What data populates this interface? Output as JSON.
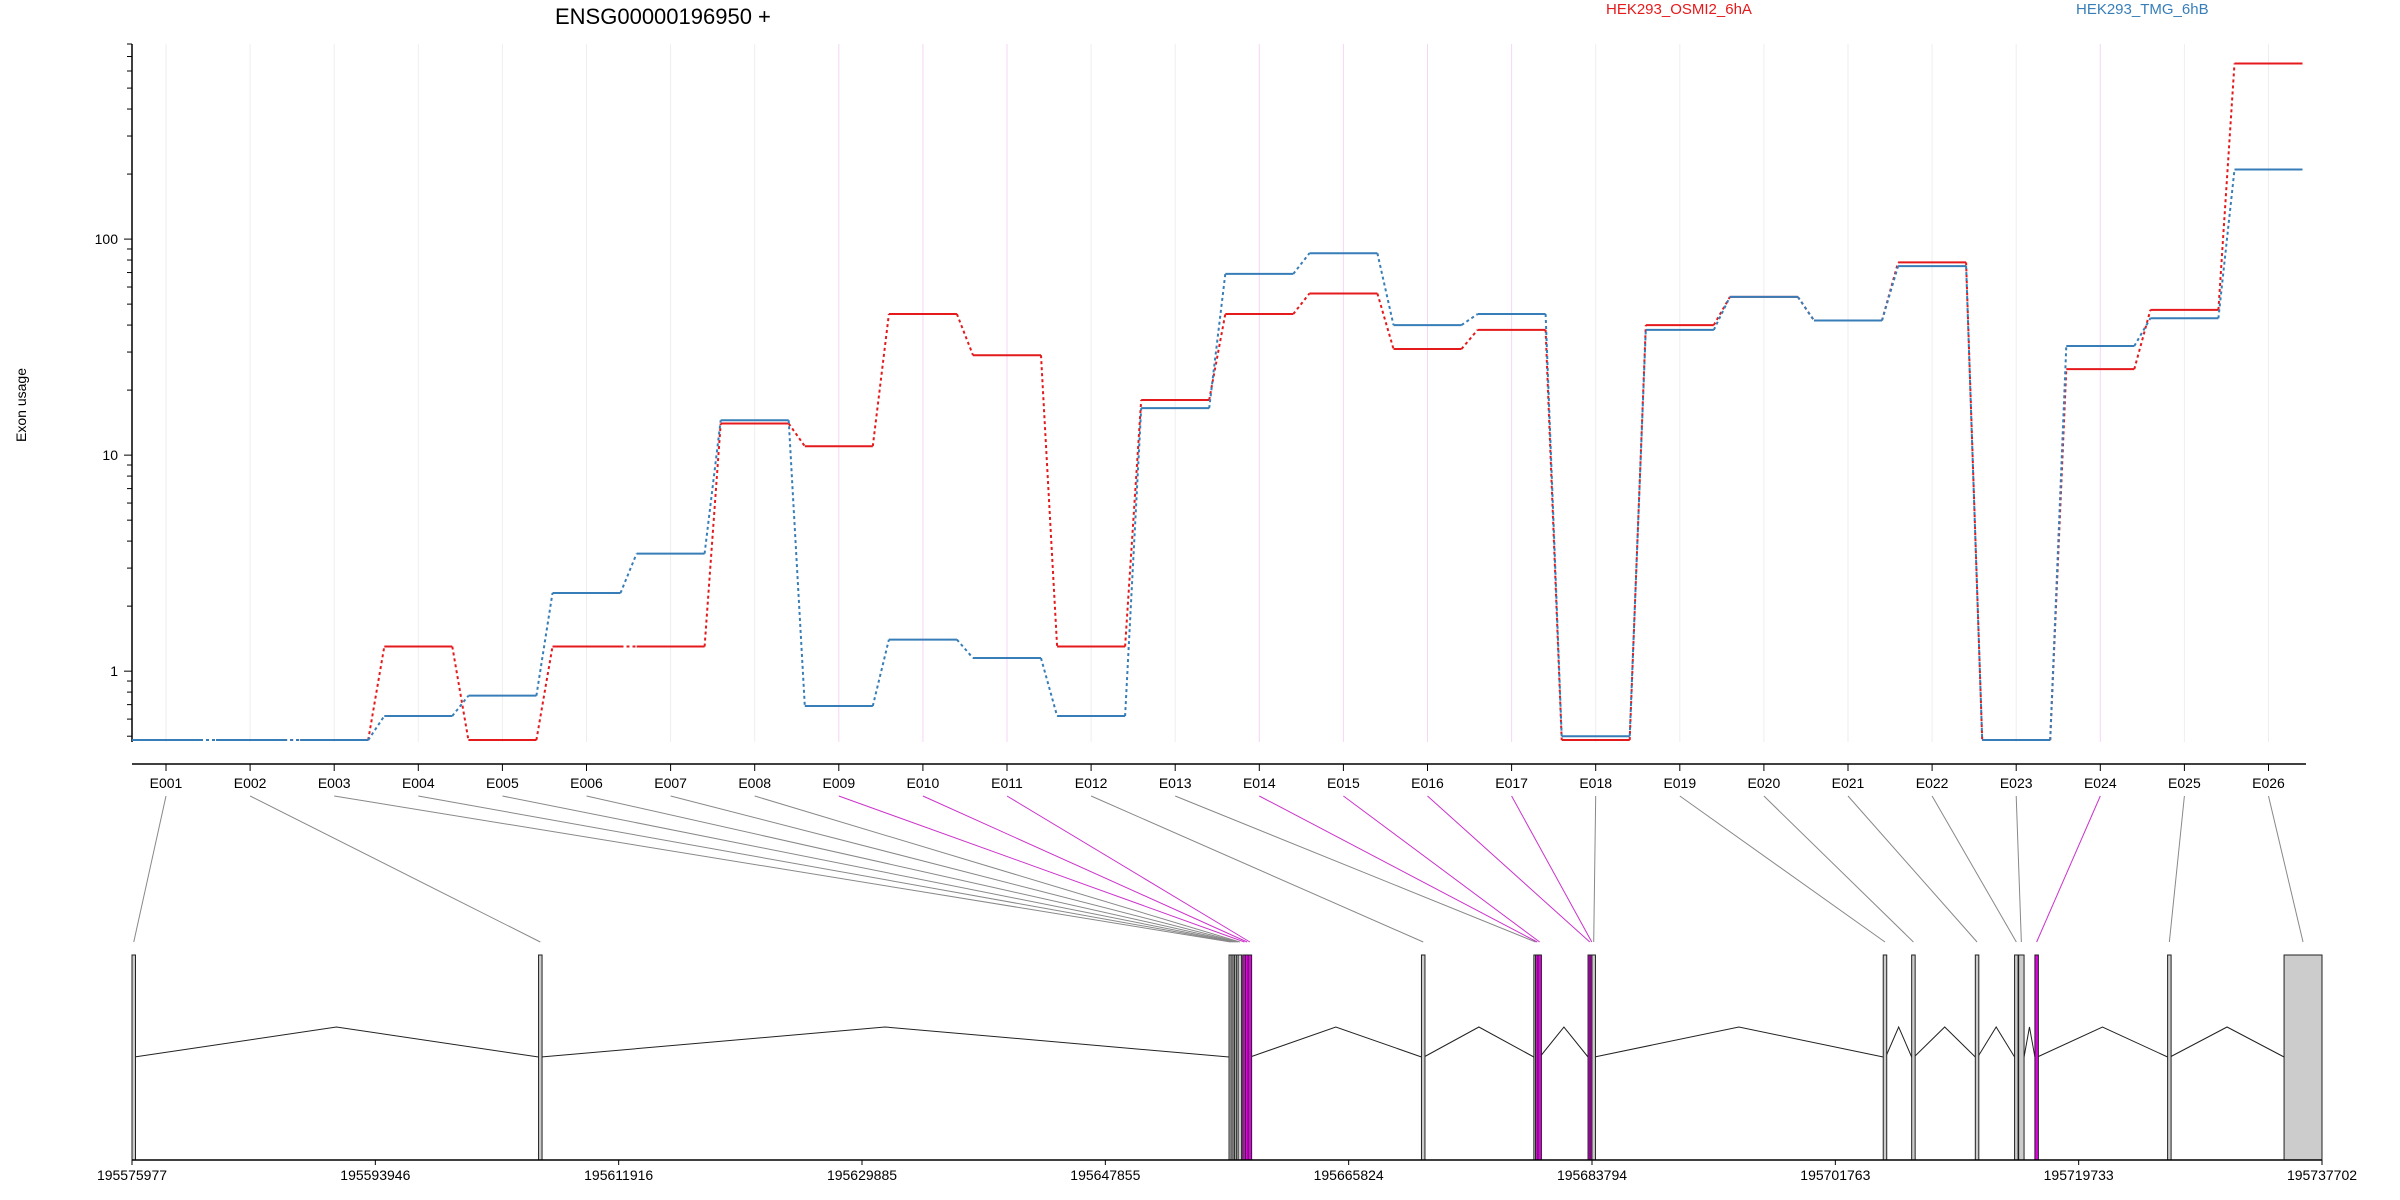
{
  "chart_data": {
    "type": "line",
    "title": "ENSG00000196950 +",
    "ylabel": "Exon usage",
    "xlabel": "",
    "yscale": "log",
    "ylim": [
      0.47,
      800
    ],
    "yticks": [
      1,
      10,
      100
    ],
    "ytick_labels": [
      "1",
      "10",
      "100"
    ],
    "grid": "vertical",
    "legend_placement": "top",
    "categories": [
      "E001",
      "E002",
      "E003",
      "E004",
      "E005",
      "E006",
      "E007",
      "E008",
      "E009",
      "E010",
      "E011",
      "E012",
      "E013",
      "E014",
      "E015",
      "E016",
      "E017",
      "E018",
      "E019",
      "E020",
      "E021",
      "E022",
      "E023",
      "E024",
      "E025",
      "E026"
    ],
    "series": [
      {
        "name": "HEK293_OSMI2_6hA",
        "color": "#e41a1c",
        "values": [
          0.48,
          0.48,
          0.48,
          1.3,
          0.48,
          1.3,
          1.3,
          14,
          11,
          45,
          29,
          1.3,
          18,
          45,
          56,
          31,
          38,
          0.48,
          40,
          54,
          42,
          78,
          0.48,
          25,
          47,
          650
        ]
      },
      {
        "name": "HEK293_TMG_6hB",
        "color": "#377eb8",
        "values": [
          0.48,
          0.48,
          0.48,
          0.62,
          0.77,
          2.3,
          3.5,
          14.5,
          0.69,
          1.4,
          1.15,
          0.62,
          16.5,
          69,
          86,
          40,
          45,
          0.5,
          38,
          54,
          42,
          75,
          0.48,
          32,
          43,
          210
        ]
      }
    ],
    "gene_model": {
      "coordinate_labels": [
        "195575977",
        "195593946",
        "195611916",
        "195629885",
        "195647855",
        "195665824",
        "195683794",
        "195701763",
        "195719733",
        "195737702"
      ],
      "coordinate_range": [
        195575977,
        195737702
      ],
      "exon_color": "#e000e0",
      "default_color": "#cccccc",
      "highlighted_exons": [
        "E009",
        "E010",
        "E011",
        "E014",
        "E015",
        "E016",
        "E017",
        "E024"
      ],
      "exons": [
        {
          "id": "E001",
          "start": 195575977,
          "end": 195576150
        },
        {
          "id": "E002",
          "start": 195606000,
          "end": 195606180
        },
        {
          "id": "E003",
          "start": 195656990,
          "end": 195657090
        },
        {
          "id": "E004",
          "start": 195657140,
          "end": 195657230
        },
        {
          "id": "E005",
          "start": 195657280,
          "end": 195657370
        },
        {
          "id": "E006",
          "start": 195657400,
          "end": 195657500
        },
        {
          "id": "E007",
          "start": 195657530,
          "end": 195657630
        },
        {
          "id": "E008",
          "start": 195657660,
          "end": 195657880
        },
        {
          "id": "E009",
          "start": 195658000,
          "end": 195658150
        },
        {
          "id": "E010",
          "start": 195658200,
          "end": 195658350
        },
        {
          "id": "E011",
          "start": 195658400,
          "end": 195658550
        },
        {
          "id": "E012",
          "start": 195671200,
          "end": 195671380
        },
        {
          "id": "E013",
          "start": 195679500,
          "end": 195679580
        },
        {
          "id": "E014",
          "start": 195679620,
          "end": 195679760
        },
        {
          "id": "E015",
          "start": 195679800,
          "end": 195679940
        },
        {
          "id": "E016",
          "start": 195683500,
          "end": 195683620
        },
        {
          "id": "E017",
          "start": 195683650,
          "end": 195683770
        },
        {
          "id": "E018",
          "start": 195683790,
          "end": 195683980
        },
        {
          "id": "E019",
          "start": 195705300,
          "end": 195705480
        },
        {
          "id": "E020",
          "start": 195707400,
          "end": 195707580
        },
        {
          "id": "E021",
          "start": 195712100,
          "end": 195712280
        },
        {
          "id": "E022",
          "start": 195715000,
          "end": 195715200
        },
        {
          "id": "E023",
          "start": 195715300,
          "end": 195715700
        },
        {
          "id": "E024",
          "start": 195716500,
          "end": 195716680
        },
        {
          "id": "E025",
          "start": 195726300,
          "end": 195726480
        },
        {
          "id": "E026",
          "start": 195734900,
          "end": 195737702
        }
      ]
    }
  }
}
